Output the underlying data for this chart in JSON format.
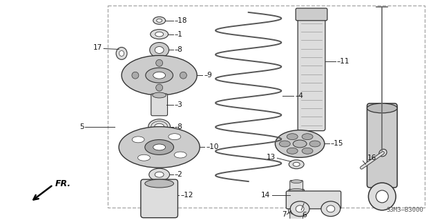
{
  "bg_color": "#ffffff",
  "diagram_code": "S3M3–B3000",
  "fr_label": "FR.",
  "line_color": "#333333",
  "border_dash": "#aaaaaa",
  "part_fill": "#cccccc",
  "part_fill2": "#dddddd",
  "spring_color": "#555555",
  "shock_color": "#444444"
}
